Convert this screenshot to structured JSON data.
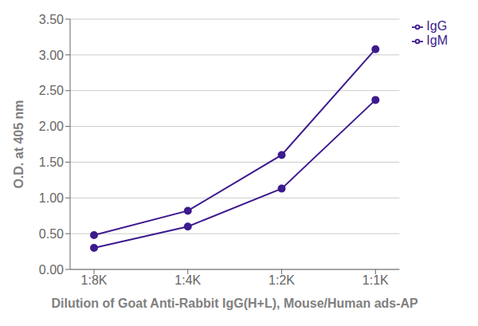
{
  "chart_data": {
    "type": "line",
    "categories": [
      "1:8K",
      "1:4K",
      "1:2K",
      "1:1K"
    ],
    "series": [
      {
        "name": "IgG",
        "color": "#3d1a8e",
        "values": [
          0.48,
          0.82,
          1.6,
          3.08
        ],
        "marker": "circle"
      },
      {
        "name": "IgM",
        "color": "#3d1a8e",
        "values": [
          0.3,
          0.6,
          1.13,
          2.37
        ],
        "marker": "circle"
      }
    ],
    "xlabel": "Dilution of Goat Anti-Rabbit IgG(H+L), Mouse/Human ads-AP",
    "ylabel": "O.D. at 405 nm",
    "ylim": [
      0.0,
      3.5
    ],
    "yticks": [
      {
        "value": 0.0,
        "label": "0.00"
      },
      {
        "value": 0.5,
        "label": "0.50"
      },
      {
        "value": 1.0,
        "label": "1.00"
      },
      {
        "value": 1.5,
        "label": "1.50"
      },
      {
        "value": 2.0,
        "label": "2.00"
      },
      {
        "value": 2.5,
        "label": "2.50"
      },
      {
        "value": 3.0,
        "label": "3.00"
      },
      {
        "value": 3.5,
        "label": "3.50"
      }
    ],
    "grid": true,
    "legend": "right"
  }
}
